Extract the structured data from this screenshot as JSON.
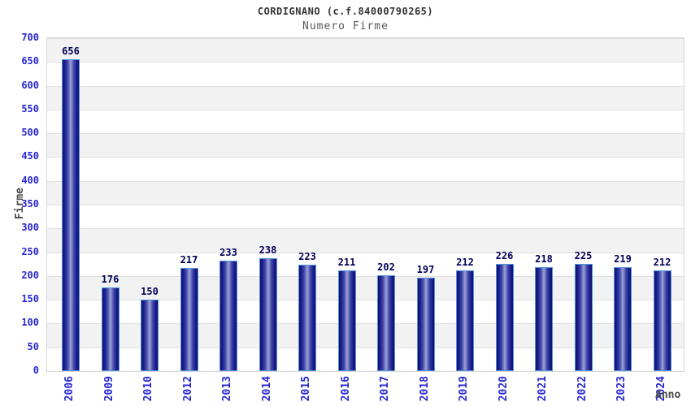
{
  "chart_data": {
    "type": "bar",
    "title": "CORDIGNANO (c.f.84000790265)",
    "subtitle": "Numero Firme",
    "xlabel": "Anno",
    "ylabel": "Firme",
    "categories": [
      "2006",
      "2009",
      "2010",
      "2012",
      "2013",
      "2014",
      "2015",
      "2016",
      "2017",
      "2018",
      "2019",
      "2020",
      "2021",
      "2022",
      "2023",
      "2024"
    ],
    "values": [
      656,
      176,
      150,
      217,
      233,
      238,
      223,
      211,
      202,
      197,
      212,
      226,
      218,
      225,
      219,
      212
    ],
    "ylim": [
      0,
      700
    ],
    "ytick_step": 50,
    "grid": "horizontal-alternating-bands",
    "legend": "none",
    "colors": {
      "bar_edge_dark": "#10106e",
      "bar_center_light": "#9ba3d4",
      "bar_border": "#4d94dd",
      "tick_label_blue": "#2727d3",
      "value_label_navy": "#000059",
      "band_gray": "#f2f2f2",
      "band_white": "#ffffff",
      "grid_line": "#e0e0e0",
      "plot_border": "#d6d6d6",
      "title_color": "#333333",
      "subtitle_color": "#595959",
      "axis_title_color": "#4a4a4a"
    }
  }
}
